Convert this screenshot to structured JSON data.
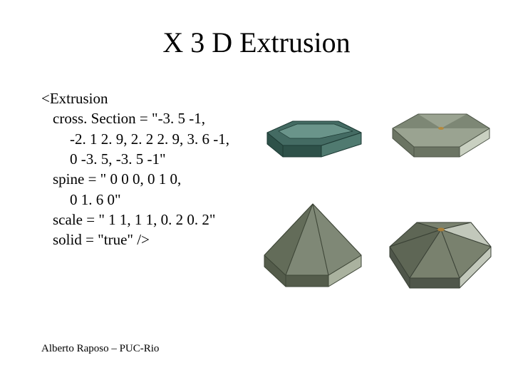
{
  "title": "X 3 D Extrusion",
  "code": {
    "l1": "<Extrusion",
    "l2": "cross. Section = \"-3. 5 -1,",
    "l3": "-2. 1 2. 9, 2. 2 2. 9, 3. 6 -1,",
    "l4": "0 -3. 5, -3. 5 -1\"",
    "l5": "spine = \" 0 0 0, 0 1 0,",
    "l6": "0 1. 6 0\"",
    "l7": "scale = \" 1 1, 1 1, 0. 2 0. 2\"",
    "l8": "solid = \"true\" />"
  },
  "footer": "Alberto Raposo – PUC-Rio",
  "shapes": {
    "shape1": {
      "top_fill": "#446b63",
      "top_highlight": "#6a948a",
      "side_fill": "#2e5149",
      "side_light": "#507a70",
      "edge": "#1d3a34"
    },
    "shape2": {
      "top_fill": "#9aa391",
      "top_dark": "#7d8775",
      "side_fill": "#6b7463",
      "side_light": "#c9d0c1",
      "edge": "#4d5547",
      "spot": "#b58a3e"
    },
    "shape3": {
      "top_fill": "#7f8876",
      "top_dark": "#636c59",
      "side_fill": "#545c4b",
      "side_light": "#aab29f",
      "edge": "#3e4637"
    },
    "shape4": {
      "top_fill": "#79816e",
      "top_dark": "#5e6655",
      "side_fill": "#4f564a",
      "side_light": "#c2c8bb",
      "edge": "#3a4136",
      "spot": "#a97f38"
    }
  }
}
